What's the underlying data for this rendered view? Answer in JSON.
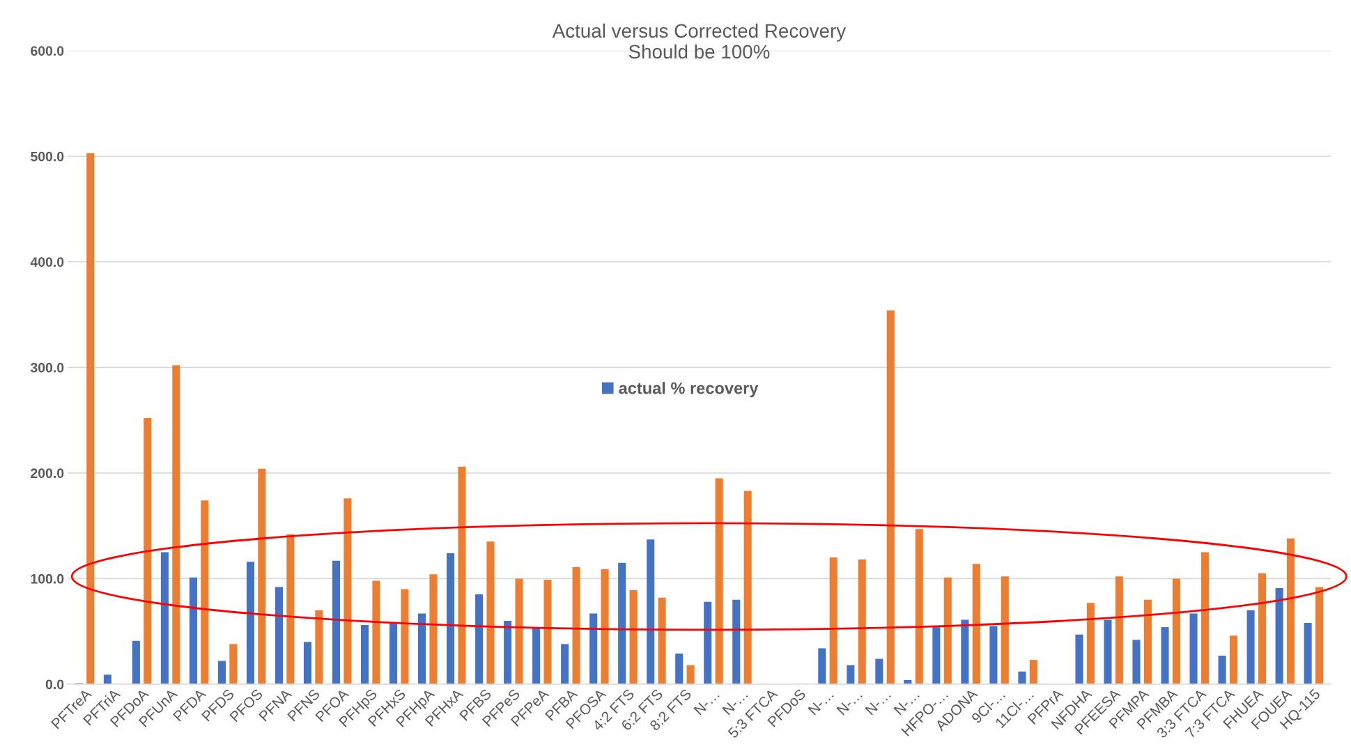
{
  "chart_data": {
    "type": "bar",
    "title": "Actual versus Corrected Recovery\nShould be 100%",
    "categories": [
      "PFTreA",
      "PFTriA",
      "PFDoA",
      "PFUnA",
      "PFDA",
      "PFDS",
      "PFOS",
      "PFNA",
      "PFNS",
      "PFOA",
      "PFHpS",
      "PFHxS",
      "PFHpA",
      "PFHxA",
      "PFBS",
      "PFPeS",
      "PFPeA",
      "PFBA",
      "PFOSA",
      "4:2 FTS",
      "6:2 FTS",
      "8:2 FTS",
      "N-…",
      "N-…",
      "5:3 FTCA",
      "PFDoS",
      "N-…",
      "N-…",
      "N-…",
      "N-…",
      "HFPO-…",
      "ADONA",
      "9Cl-…",
      "11Cl-…",
      "PFPrA",
      "NFDHA",
      "PFEESA",
      "PFMPA",
      "PFMBA",
      "3:3 FTCA",
      "7:3 FTCA",
      "FHUEA",
      "FOUEA",
      "HQ-115"
    ],
    "series": [
      {
        "name": "actual % recovery",
        "color": "#4472c4",
        "values": [
          1,
          9,
          41,
          125,
          101,
          22,
          116,
          92,
          40,
          117,
          56,
          58,
          67,
          124,
          85,
          60,
          53,
          38,
          67,
          115,
          137,
          29,
          78,
          80,
          null,
          null,
          34,
          18,
          24,
          4,
          54,
          61,
          55,
          12,
          null,
          47,
          61,
          42,
          54,
          67,
          27,
          70,
          91,
          58
        ]
      },
      {
        "color": "#ed7d31",
        "values": [
          503,
          null,
          252,
          302,
          174,
          38,
          204,
          142,
          70,
          176,
          98,
          90,
          104,
          206,
          135,
          100,
          99,
          111,
          109,
          89,
          82,
          18,
          195,
          183,
          null,
          null,
          120,
          118,
          354,
          147,
          101,
          114,
          102,
          23,
          null,
          77,
          102,
          80,
          100,
          125,
          46,
          105,
          138,
          92
        ]
      }
    ],
    "ylim": [
      0,
      600
    ],
    "yticks": [
      {
        "value": 0,
        "label": "0.0"
      },
      {
        "value": 100,
        "label": "100.0"
      },
      {
        "value": 200,
        "label": "200.0"
      },
      {
        "value": 300,
        "label": "300.0"
      },
      {
        "value": 400,
        "label": "400.0"
      },
      {
        "value": 500,
        "label": "500.0"
      },
      {
        "value": 600,
        "label": "600.0"
      }
    ],
    "grid": "y",
    "legend": "center"
  }
}
